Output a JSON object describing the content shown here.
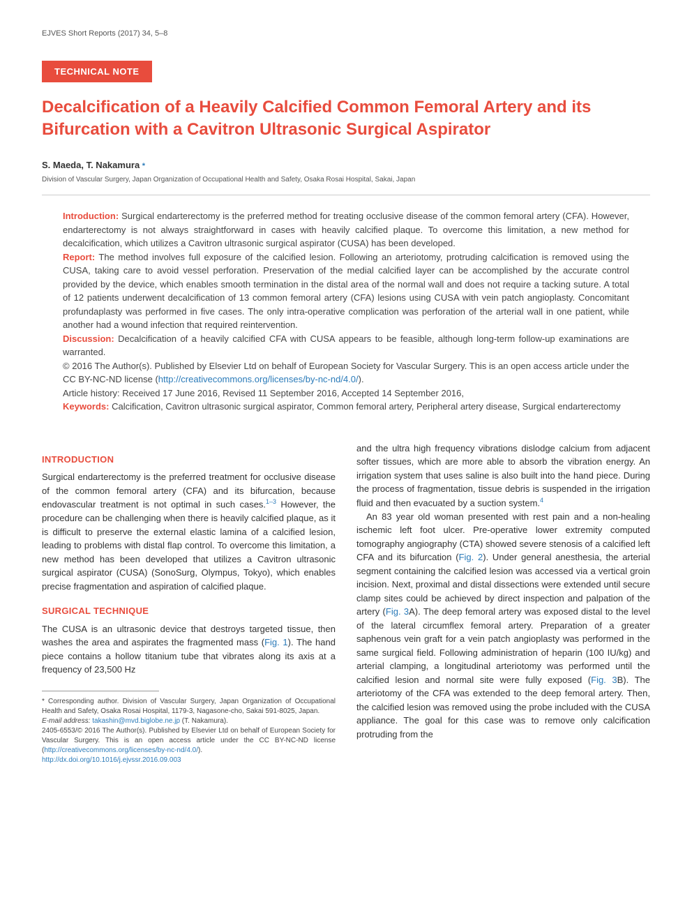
{
  "journal": {
    "citation": "EJVES Short Reports (2017) 34, 5–8"
  },
  "article": {
    "type_label": "TECHNICAL NOTE",
    "title": "Decalcification of a Heavily Calcified Common Femoral Artery and its Bifurcation with a Cavitron Ultrasonic Surgical Aspirator",
    "authors": "S. Maeda, T. Nakamura",
    "corr_mark": "*",
    "affiliation": "Division of Vascular Surgery, Japan Organization of Occupational Health and Safety, Osaka Rosai Hospital, Sakai, Japan"
  },
  "abstract": {
    "intro_label": "Introduction:",
    "intro_text": " Surgical endarterectomy is the preferred method for treating occlusive disease of the common femoral artery (CFA). However, endarterectomy is not always straightforward in cases with heavily calcified plaque. To overcome this limitation, a new method for decalcification, which utilizes a Cavitron ultrasonic surgical aspirator (CUSA) has been developed.",
    "report_label": "Report:",
    "report_text": " The method involves full exposure of the calcified lesion. Following an arteriotomy, protruding calcification is removed using the CUSA, taking care to avoid vessel perforation. Preservation of the medial calcified layer can be accomplished by the accurate control provided by the device, which enables smooth termination in the distal area of the normal wall and does not require a tacking suture. A total of 12 patients underwent decalcification of 13 common femoral artery (CFA) lesions using CUSA with vein patch angioplasty. Concomitant profundaplasty was performed in five cases. The only intra-operative complication was perforation of the arterial wall in one patient, while another had a wound infection that required reintervention.",
    "discussion_label": "Discussion:",
    "discussion_text": " Decalcification of a heavily calcified CFA with CUSA appears to be feasible, although long-term follow-up examinations are warranted.",
    "copyright": "© 2016 The Author(s). Published by Elsevier Ltd on behalf of European Society for Vascular Surgery. This is an open access article under the CC BY-NC-ND license (",
    "license_url": "http://creativecommons.org/licenses/by-nc-nd/4.0/",
    "copyright_close": ").",
    "history": "Article history: Received 17 June 2016, Revised 11 September 2016, Accepted 14 September 2016,",
    "keywords_label": "Keywords:",
    "keywords_text": " Calcification, Cavitron ultrasonic surgical aspirator, Common femoral artery, Peripheral artery disease, Surgical endarterectomy"
  },
  "body": {
    "intro_heading": "INTRODUCTION",
    "intro_p1a": "Surgical endarterectomy is the preferred treatment for occlusive disease of the common femoral artery (CFA) and its bifurcation, because endovascular treatment is not optimal in such cases.",
    "intro_ref1": "1–3",
    "intro_p1b": " However, the procedure can be challenging when there is heavily calcified plaque, as it is difficult to preserve the external elastic lamina of a calcified lesion, leading to problems with distal flap control. To overcome this limitation, a new method has been developed that utilizes a Cavitron ultrasonic surgical aspirator (CUSA) (SonoSurg, Olympus, Tokyo), which enables precise fragmentation and aspiration of calcified plaque.",
    "tech_heading": "SURGICAL TECHNIQUE",
    "tech_p1a": "The CUSA is an ultrasonic device that destroys targeted tissue, then washes the area and aspirates the fragmented mass (",
    "tech_fig1": "Fig. 1",
    "tech_p1b": "). The hand piece contains a hollow titanium tube that vibrates along its axis at a frequency of 23,500 Hz",
    "col2_p1a": "and the ultra high frequency vibrations dislodge calcium from adjacent softer tissues, which are more able to absorb the vibration energy. An irrigation system that uses saline is also built into the hand piece. During the process of fragmentation, tissue debris is suspended in the irrigation fluid and then evacuated by a suction system.",
    "col2_ref4": "4",
    "col2_p2a": "An 83 year old woman presented with rest pain and a non-healing ischemic left foot ulcer. Pre-operative lower extremity computed tomography angiography (CTA) showed severe stenosis of a calcified left CFA and its bifurcation (",
    "col2_fig2": "Fig. 2",
    "col2_p2b": "). Under general anesthesia, the arterial segment containing the calcified lesion was accessed via a vertical groin incision. Next, proximal and distal dissections were extended until secure clamp sites could be achieved by direct inspection and palpation of the artery (",
    "col2_fig3a": "Fig. 3",
    "col2_p2c": "A). The deep femoral artery was exposed distal to the level of the lateral circumflex femoral artery. Preparation of a greater saphenous vein graft for a vein patch angioplasty was performed in the same surgical field. Following administration of heparin (100 IU/kg) and arterial clamping, a longitudinal arteriotomy was performed until the calcified lesion and normal site were fully exposed (",
    "col2_fig3b": "Fig. 3",
    "col2_p2d": "B). The arteriotomy of the CFA was extended to the deep femoral artery. Then, the calcified lesion was removed using the probe included with the CUSA appliance. The goal for this case was to remove only calcification protruding from the"
  },
  "footnotes": {
    "corr_text": "* Corresponding author. Division of Vascular Surgery, Japan Organization of Occupational Health and Safety, Osaka Rosai Hospital, 1179-3, Nagasone-cho, Sakai 591-8025, Japan.",
    "email_label": "E-mail address:",
    "email_value": " takashin@mvd.biglobe.ne.jp",
    "email_suffix": " (T. Nakamura).",
    "issn_text": "2405-6553/© 2016 The Author(s). Published by Elsevier Ltd on behalf of European Society for Vascular Surgery. This is an open access article under the CC BY-NC-ND license (",
    "issn_url": "http://creativecommons.org/licenses/by-nc-nd/4.0/",
    "issn_close": ").",
    "doi": "http://dx.doi.org/10.1016/j.ejvssr.2016.09.003"
  },
  "colors": {
    "accent": "#e84c3d",
    "link": "#2b7bb9",
    "text": "#333333",
    "muted": "#555555",
    "background": "#ffffff"
  }
}
